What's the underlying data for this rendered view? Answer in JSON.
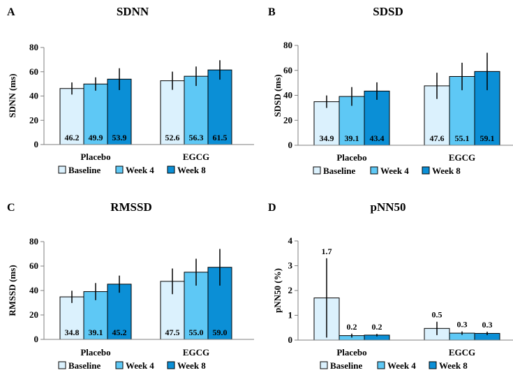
{
  "colors": {
    "baseline": "#dbf1fd",
    "week4": "#5ec8f5",
    "week8": "#0b8fd6",
    "axis": "#7f7f7f",
    "outline": "#000000"
  },
  "chart_data": [
    {
      "panel": "A",
      "type": "bar",
      "title": "SDNN",
      "ylabel": "SDNN (ms)",
      "xlabel": "",
      "ylim": [
        0,
        80
      ],
      "yticks": [
        0,
        20,
        40,
        60,
        80
      ],
      "categories": [
        "Placebo",
        "EGCG"
      ],
      "value_labels_inside": true,
      "series": [
        {
          "name": "Baseline",
          "values": [
            46.2,
            52.6
          ],
          "labels": [
            "46.2",
            "52.6"
          ],
          "errors": [
            5,
            7.5
          ]
        },
        {
          "name": "Week 4",
          "values": [
            49.9,
            56.3
          ],
          "labels": [
            "49.9",
            "56.3"
          ],
          "errors": [
            5.5,
            8
          ]
        },
        {
          "name": "Week 8",
          "values": [
            53.9,
            61.5
          ],
          "labels": [
            "53.9",
            "61.5"
          ],
          "errors": [
            9,
            8
          ]
        }
      ],
      "legend": "bottom"
    },
    {
      "panel": "B",
      "type": "bar",
      "title": "SDSD",
      "ylabel": "SDSD (ms)",
      "xlabel": "",
      "ylim": [
        0,
        80
      ],
      "yticks": [
        0,
        20,
        40,
        60,
        80
      ],
      "categories": [
        "Placebo",
        "EGCG"
      ],
      "value_labels_inside": true,
      "series": [
        {
          "name": "Baseline",
          "values": [
            34.9,
            47.6
          ],
          "labels": [
            "34.9",
            "47.6"
          ],
          "errors": [
            5,
            10.5
          ]
        },
        {
          "name": "Week 4",
          "values": [
            39.1,
            55.1
          ],
          "labels": [
            "39.1",
            "55.1"
          ],
          "errors": [
            7.5,
            11
          ]
        },
        {
          "name": "Week 8",
          "values": [
            43.4,
            59.1
          ],
          "labels": [
            "43.4",
            "59.1"
          ],
          "errors": [
            7,
            15
          ]
        }
      ],
      "legend": "bottom"
    },
    {
      "panel": "C",
      "type": "bar",
      "title": "RMSSD",
      "ylabel": "RMSSD (ms)",
      "xlabel": "",
      "ylim": [
        0,
        80
      ],
      "yticks": [
        0,
        20,
        40,
        60,
        80
      ],
      "categories": [
        "Placebo",
        "EGCG"
      ],
      "value_labels_inside": true,
      "series": [
        {
          "name": "Baseline",
          "values": [
            34.8,
            47.5
          ],
          "labels": [
            "34.8",
            "47.5"
          ],
          "errors": [
            5,
            10.5
          ]
        },
        {
          "name": "Week 4",
          "values": [
            39.1,
            55.0
          ],
          "labels": [
            "39.1",
            "55.0"
          ],
          "errors": [
            7,
            11
          ]
        },
        {
          "name": "Week 8",
          "values": [
            45.2,
            59.0
          ],
          "labels": [
            "45.2",
            "59.0"
          ],
          "errors": [
            7,
            15
          ]
        }
      ],
      "legend": "bottom"
    },
    {
      "panel": "D",
      "type": "bar",
      "title": "pNN50",
      "ylabel": "pNN50 (%)",
      "xlabel": "",
      "ylim": [
        0,
        4
      ],
      "yticks": [
        0,
        1,
        2,
        3,
        4
      ],
      "categories": [
        "Placebo",
        "EGCG"
      ],
      "value_labels_inside": false,
      "series": [
        {
          "name": "Baseline",
          "values": [
            1.7,
            0.47
          ],
          "labels": [
            "1.7",
            "0.5"
          ],
          "errors": [
            1.6,
            0.27
          ]
        },
        {
          "name": "Week 4",
          "values": [
            0.18,
            0.28
          ],
          "labels": [
            "0.2",
            "0.3"
          ],
          "errors": [
            0.08,
            0.07
          ]
        },
        {
          "name": "Week 8",
          "values": [
            0.2,
            0.27
          ],
          "labels": [
            "0.2",
            "0.3"
          ],
          "errors": [
            0.05,
            0.07
          ]
        }
      ],
      "legend": "bottom"
    }
  ]
}
